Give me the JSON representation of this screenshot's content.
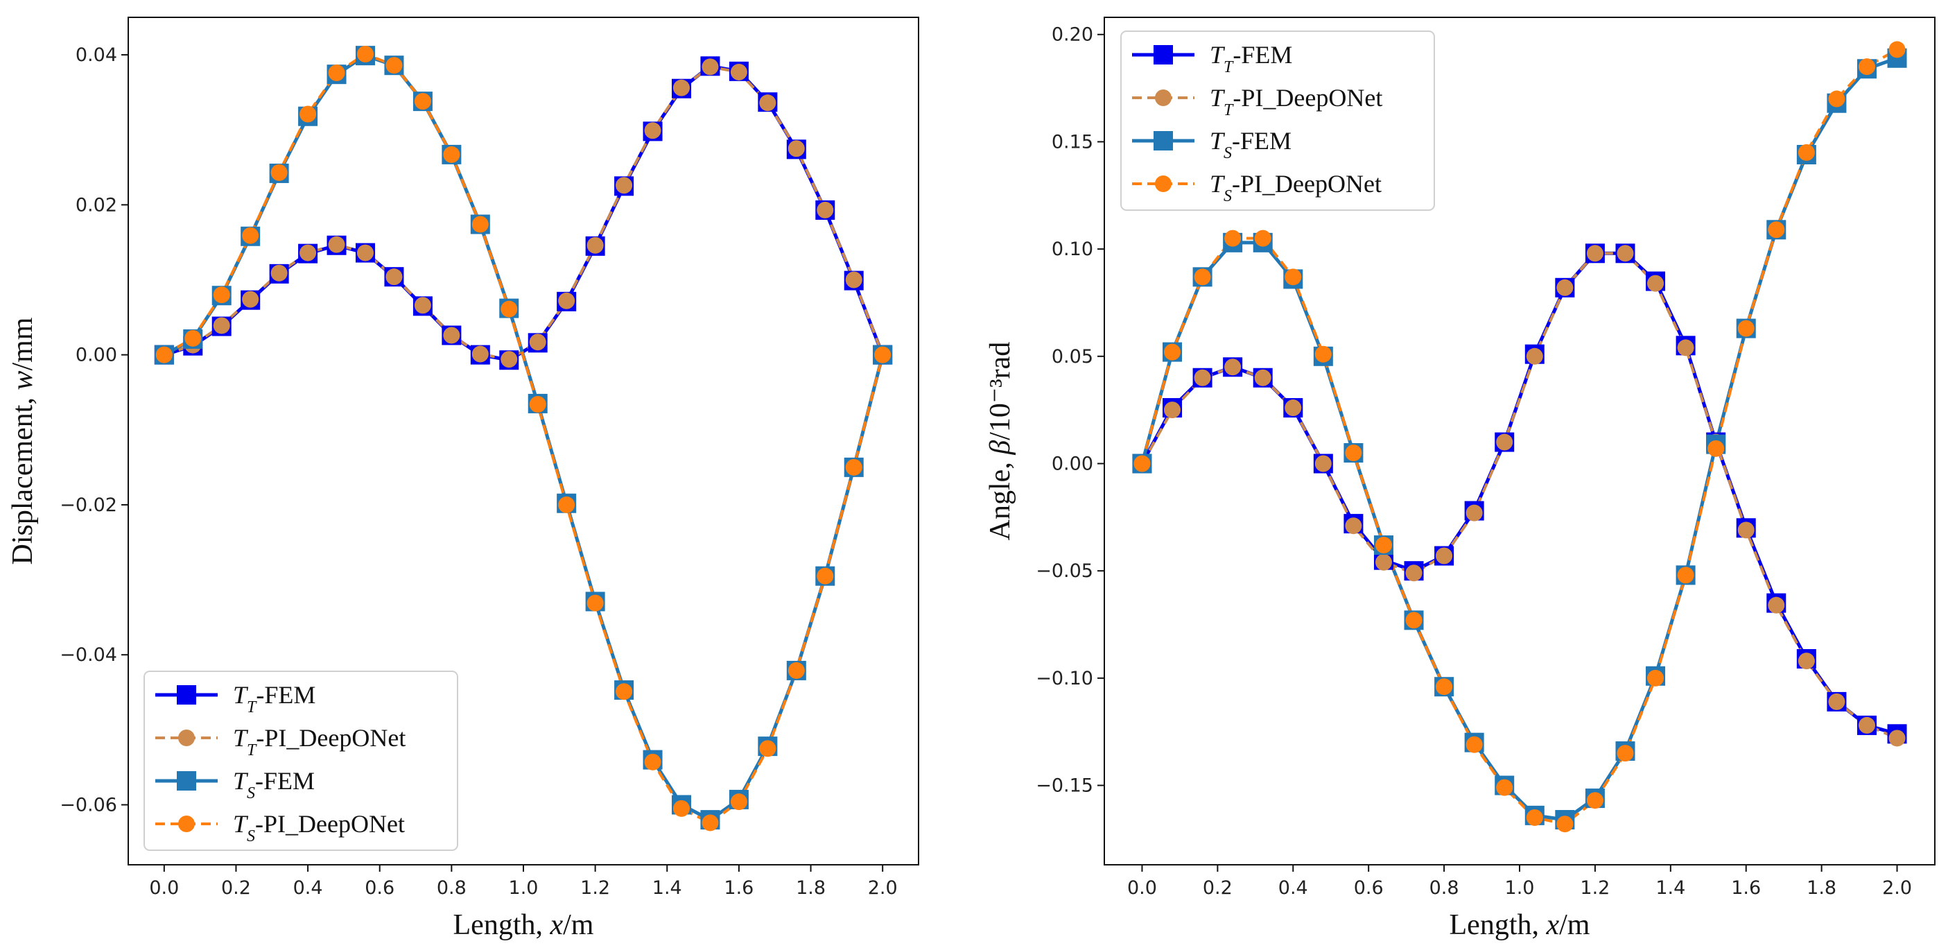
{
  "chart_data": [
    {
      "type": "line",
      "title": "",
      "xlabel": "Length, x/m",
      "ylabel": "Displacement, w/mm",
      "xlim": [
        -0.1,
        2.1
      ],
      "ylim": [
        -0.068,
        0.045
      ],
      "grid": false,
      "legend_position": "lower-left",
      "xticks": [
        0.0,
        0.2,
        0.4,
        0.6,
        0.8,
        1.0,
        1.2,
        1.4,
        1.6,
        1.8,
        2.0
      ],
      "xtick_labels": [
        "0.0",
        "0.2",
        "0.4",
        "0.6",
        "0.8",
        "1.0",
        "1.2",
        "1.4",
        "1.6",
        "1.8",
        "2.0"
      ],
      "yticks": [
        -0.06,
        -0.04,
        -0.02,
        0.0,
        0.02,
        0.04
      ],
      "ytick_labels": [
        "−0.06",
        "−0.04",
        "−0.02",
        "0.00",
        "0.02",
        "0.04"
      ],
      "x": [
        0.0,
        0.08,
        0.16,
        0.24,
        0.32,
        0.4,
        0.48,
        0.56,
        0.64,
        0.72,
        0.8,
        0.88,
        0.96,
        1.04,
        1.12,
        1.2,
        1.28,
        1.36,
        1.44,
        1.52,
        1.6,
        1.68,
        1.76,
        1.84,
        1.92,
        2.0
      ],
      "series": [
        {
          "name": "T_T-FEM",
          "sym": "T",
          "sub": "T",
          "suffix": "-FEM",
          "style": "fem",
          "color": "#0000ee",
          "marker": "square",
          "values": [
            0.0,
            0.0012,
            0.0038,
            0.0073,
            0.0108,
            0.0135,
            0.0146,
            0.0136,
            0.0104,
            0.0065,
            0.0026,
            0.0,
            -0.0007,
            0.0016,
            0.0071,
            0.0145,
            0.0225,
            0.0298,
            0.0355,
            0.0385,
            0.0378,
            0.0337,
            0.0274,
            0.0193,
            0.0099,
            0.0
          ]
        },
        {
          "name": "T_T-PI_DeepONet",
          "sym": "T",
          "sub": "T",
          "suffix": "-PI_DeepONet",
          "style": "pi",
          "color": "#cd8a4c",
          "marker": "circle",
          "values": [
            0.0,
            0.0013,
            0.0039,
            0.0074,
            0.0109,
            0.0136,
            0.0147,
            0.0136,
            0.0104,
            0.0066,
            0.0026,
            0.0001,
            -0.0006,
            0.0017,
            0.0072,
            0.0146,
            0.0226,
            0.0299,
            0.0356,
            0.0384,
            0.0377,
            0.0336,
            0.0275,
            0.0193,
            0.01,
            0.0
          ]
        },
        {
          "name": "T_S-FEM",
          "sym": "T",
          "sub": "S",
          "suffix": "-FEM",
          "style": "fem",
          "color": "#2178b4",
          "marker": "square",
          "values": [
            0.0,
            0.0021,
            0.0079,
            0.0158,
            0.0242,
            0.0318,
            0.0374,
            0.0399,
            0.0386,
            0.0338,
            0.0267,
            0.0174,
            0.0062,
            -0.0065,
            -0.0198,
            -0.0329,
            -0.0447,
            -0.054,
            -0.06,
            -0.062,
            -0.0593,
            -0.0522,
            -0.0421,
            -0.0295,
            -0.015,
            0.0
          ]
        },
        {
          "name": "T_S-PI_DeepONet",
          "sym": "T",
          "sub": "S",
          "suffix": "-PI_DeepONet",
          "style": "pi",
          "color": "#ff7f0e",
          "marker": "circle",
          "values": [
            0.0,
            0.0022,
            0.008,
            0.0159,
            0.0243,
            0.0321,
            0.0376,
            0.0401,
            0.0386,
            0.0338,
            0.0267,
            0.0174,
            0.0061,
            -0.0066,
            -0.02,
            -0.0331,
            -0.0449,
            -0.0543,
            -0.0605,
            -0.0624,
            -0.0596,
            -0.0525,
            -0.0421,
            -0.0295,
            -0.015,
            0.0
          ]
        }
      ]
    },
    {
      "type": "line",
      "title": "",
      "xlabel": "Length, x/m",
      "ylabel": "Angle, β/10⁻³rad",
      "xlim": [
        -0.1,
        2.1
      ],
      "ylim": [
        -0.187,
        0.208
      ],
      "grid": false,
      "legend_position": "top-left",
      "xticks": [
        0.0,
        0.2,
        0.4,
        0.6,
        0.8,
        1.0,
        1.2,
        1.4,
        1.6,
        1.8,
        2.0
      ],
      "xtick_labels": [
        "0.0",
        "0.2",
        "0.4",
        "0.6",
        "0.8",
        "1.0",
        "1.2",
        "1.4",
        "1.6",
        "1.8",
        "2.0"
      ],
      "yticks": [
        -0.15,
        -0.1,
        -0.05,
        0.0,
        0.05,
        0.1,
        0.15,
        0.2
      ],
      "ytick_labels": [
        "−0.15",
        "−0.10",
        "−0.05",
        "0.00",
        "0.05",
        "0.10",
        "0.15",
        "0.20"
      ],
      "x": [
        0.0,
        0.08,
        0.16,
        0.24,
        0.32,
        0.4,
        0.48,
        0.56,
        0.64,
        0.72,
        0.8,
        0.88,
        0.96,
        1.04,
        1.12,
        1.2,
        1.28,
        1.36,
        1.44,
        1.52,
        1.6,
        1.68,
        1.76,
        1.84,
        1.92,
        2.0
      ],
      "series": [
        {
          "name": "T_T-FEM",
          "sym": "T",
          "sub": "T",
          "suffix": "-FEM",
          "style": "fem",
          "color": "#0000ee",
          "marker": "square",
          "values": [
            0.0,
            0.026,
            0.04,
            0.045,
            0.04,
            0.026,
            0.0,
            -0.028,
            -0.045,
            -0.05,
            -0.043,
            -0.022,
            0.01,
            0.051,
            0.082,
            0.098,
            0.098,
            0.085,
            0.055,
            0.01,
            -0.03,
            -0.065,
            -0.091,
            -0.111,
            -0.122,
            -0.126
          ]
        },
        {
          "name": "T_T-PI_DeepONet",
          "sym": "T",
          "sub": "T",
          "suffix": "-PI_DeepONet",
          "style": "pi",
          "color": "#cd8a4c",
          "marker": "circle",
          "values": [
            0.0,
            0.025,
            0.04,
            0.045,
            0.04,
            0.026,
            0.0,
            -0.029,
            -0.046,
            -0.051,
            -0.043,
            -0.023,
            0.01,
            0.05,
            0.082,
            0.098,
            0.098,
            0.084,
            0.054,
            0.01,
            -0.031,
            -0.066,
            -0.092,
            -0.111,
            -0.122,
            -0.128
          ]
        },
        {
          "name": "T_S-FEM",
          "sym": "T",
          "sub": "S",
          "suffix": "-FEM",
          "style": "fem",
          "color": "#2178b4",
          "marker": "square",
          "values": [
            0.0,
            0.052,
            0.087,
            0.103,
            0.103,
            0.086,
            0.05,
            0.005,
            -0.038,
            -0.073,
            -0.104,
            -0.13,
            -0.15,
            -0.164,
            -0.166,
            -0.156,
            -0.134,
            -0.099,
            -0.052,
            0.009,
            0.063,
            0.109,
            0.144,
            0.168,
            0.184,
            0.189
          ]
        },
        {
          "name": "T_S-PI_DeepONet",
          "sym": "T",
          "sub": "S",
          "suffix": "-PI_DeepONet",
          "style": "pi",
          "color": "#ff7f0e",
          "marker": "circle",
          "values": [
            0.0,
            0.052,
            0.087,
            0.105,
            0.105,
            0.087,
            0.051,
            0.005,
            -0.038,
            -0.073,
            -0.104,
            -0.131,
            -0.151,
            -0.165,
            -0.168,
            -0.157,
            -0.135,
            -0.1,
            -0.052,
            0.007,
            0.063,
            0.109,
            0.145,
            0.17,
            0.185,
            0.193
          ]
        }
      ]
    }
  ]
}
